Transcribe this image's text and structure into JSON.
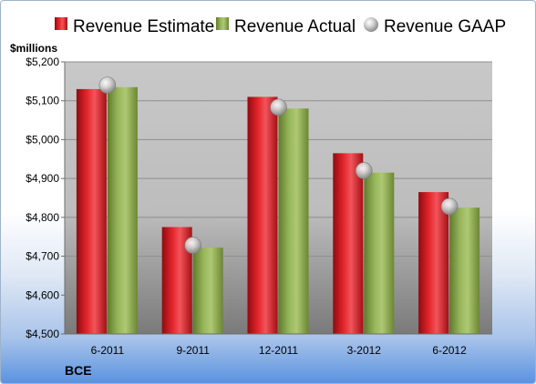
{
  "chart_data": {
    "type": "bar",
    "unit_label": "$millions",
    "company": "BCE",
    "categories": [
      "6-2011",
      "9-2011",
      "12-2011",
      "3-2012",
      "6-2012"
    ],
    "series": [
      {
        "name": "Revenue Estimate",
        "kind": "bar",
        "color": "#d0131c",
        "values": [
          5130,
          4775,
          5110,
          4965,
          4865
        ]
      },
      {
        "name": "Revenue Actual",
        "kind": "bar",
        "color": "#8aa84a",
        "values": [
          5135,
          4722,
          5080,
          4915,
          4825
        ]
      },
      {
        "name": "Revenue GAAP",
        "kind": "marker",
        "color": "#c8c8c8",
        "values": [
          5140,
          4728,
          5083,
          4920,
          4828
        ]
      }
    ],
    "yticks": [
      "$4,500",
      "$4,600",
      "$4,700",
      "$4,800",
      "$4,900",
      "$5,000",
      "$5,100",
      "$5,200"
    ],
    "ylim": [
      4500,
      5200
    ],
    "grid": true,
    "legend_position": "top"
  }
}
